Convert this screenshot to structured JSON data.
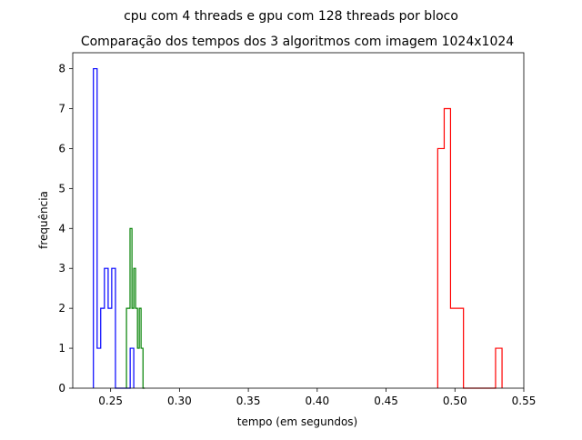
{
  "figure": {
    "suptitle": "cpu com 4 threads e gpu com 128 threads por bloco"
  },
  "chart_data": {
    "type": "histogram",
    "title": "Comparação dos tempos dos 3 algoritmos com imagem 1024x1024",
    "xlabel": "tempo (em segundos)",
    "ylabel": "frequência",
    "xlim": [
      0.2225,
      0.55
    ],
    "ylim": [
      0,
      8.4
    ],
    "xticks": [
      0.25,
      0.3,
      0.35,
      0.4,
      0.45,
      0.5,
      0.55
    ],
    "xtick_labels": [
      "0.25",
      "0.30",
      "0.35",
      "0.40",
      "0.45",
      "0.50",
      "0.55"
    ],
    "yticks": [
      0,
      1,
      2,
      3,
      4,
      5,
      6,
      7,
      8
    ],
    "ytick_labels": [
      "0",
      "1",
      "2",
      "3",
      "4",
      "5",
      "6",
      "7",
      "8"
    ],
    "grid": false,
    "series": [
      {
        "color": "#0000ff",
        "bin_edges": [
          0.2375,
          0.2402,
          0.2428,
          0.2455,
          0.2482,
          0.2508,
          0.2535,
          0.2562,
          0.2588,
          0.2615,
          0.2642,
          0.2668
        ],
        "counts": [
          8,
          1,
          2,
          3,
          2,
          3,
          0,
          0,
          0,
          0,
          1
        ]
      },
      {
        "color": "#008000",
        "bin_edges": [
          0.2615,
          0.2628,
          0.2641,
          0.2655,
          0.2668,
          0.2681,
          0.2695,
          0.2708,
          0.2721,
          0.2735,
          0.2748
        ],
        "counts": [
          2,
          2,
          4,
          2,
          3,
          2,
          1,
          2,
          1,
          0
        ]
      },
      {
        "color": "#ff0000",
        "bin_edges": [
          0.4875,
          0.4922,
          0.4968,
          0.5015,
          0.5062,
          0.5108,
          0.5155,
          0.5202,
          0.5248,
          0.5295,
          0.5342
        ],
        "counts": [
          6,
          7,
          2,
          2,
          0,
          0,
          0,
          0,
          0,
          1
        ]
      }
    ]
  }
}
